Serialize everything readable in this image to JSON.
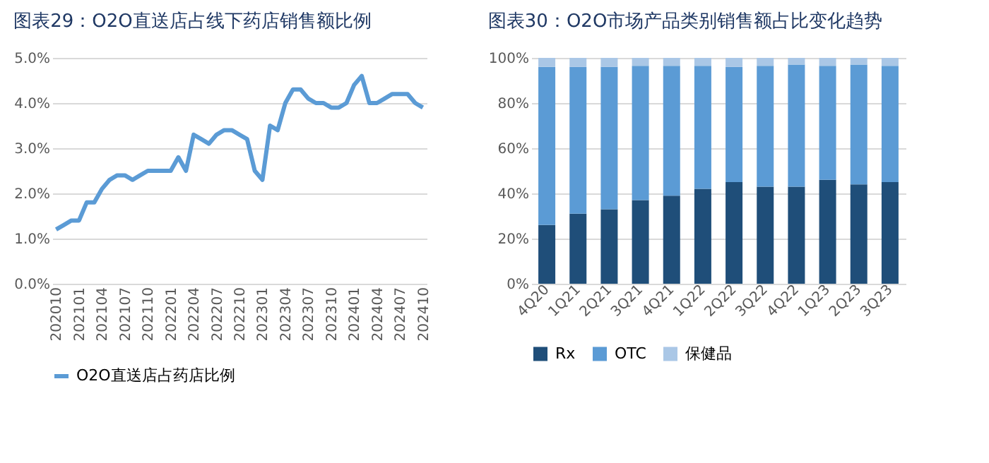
{
  "chart_data": [
    {
      "type": "line",
      "title": "图表29：O2O直送店占线下药店销售额比例",
      "categories": [
        "202010",
        null,
        null,
        "202101",
        null,
        null,
        "202104",
        null,
        null,
        "202107",
        null,
        null,
        "202110",
        null,
        null,
        "202201",
        null,
        null,
        "202204",
        null,
        null,
        "202207",
        null,
        null,
        "202210",
        null,
        null,
        "202301",
        null,
        null,
        "202304",
        null,
        null,
        "202307",
        null,
        null,
        "202310",
        null,
        null,
        "202401",
        null,
        null,
        "202404",
        null,
        null,
        "202407",
        null,
        null,
        "202410"
      ],
      "series": [
        {
          "name": "O2O直送店占药店比例",
          "color": "#5b9bd5",
          "values": [
            1.2,
            1.3,
            1.4,
            1.4,
            1.8,
            1.8,
            2.1,
            2.3,
            2.4,
            2.4,
            2.3,
            2.4,
            2.5,
            2.5,
            2.5,
            2.5,
            2.8,
            2.5,
            3.3,
            3.2,
            3.1,
            3.3,
            3.4,
            3.4,
            3.3,
            3.2,
            2.5,
            2.3,
            3.5,
            3.4,
            4.0,
            4.3,
            4.3,
            4.1,
            4.0,
            4.0,
            3.9,
            3.9,
            4.0,
            4.4,
            4.6,
            4.0,
            4.0,
            4.1,
            4.2,
            4.2,
            4.2,
            4.0,
            3.9
          ]
        }
      ],
      "ylim": [
        0,
        5
      ],
      "yticks": [
        {
          "value": 0,
          "label": "0.0%"
        },
        {
          "value": 1,
          "label": "1.0%"
        },
        {
          "value": 2,
          "label": "2.0%"
        },
        {
          "value": 3,
          "label": "3.0%"
        },
        {
          "value": 4,
          "label": "4.0%"
        },
        {
          "value": 5,
          "label": "5.0%"
        }
      ],
      "grid": "y",
      "legend": "bottom"
    },
    {
      "type": "bar",
      "title": "图表30：O2O市场产品类别销售额占比变化趋势",
      "stacked": true,
      "categories": [
        "4Q20",
        "1Q21",
        "2Q21",
        "3Q21",
        "4Q21",
        "1Q22",
        "2Q22",
        "3Q22",
        "4Q22",
        "1Q23",
        "2Q23",
        "3Q23"
      ],
      "series": [
        {
          "name": "Rx",
          "color": "#1f4e79",
          "values": [
            26,
            31,
            33,
            37,
            39,
            42,
            45,
            43,
            43,
            46,
            44,
            45
          ]
        },
        {
          "name": "OTC",
          "color": "#5b9bd5",
          "values": [
            70,
            65,
            63,
            59.5,
            57.5,
            54.5,
            51,
            53.5,
            54,
            50.5,
            53,
            51.5
          ]
        },
        {
          "name": "保健品",
          "color": "#aac7e6",
          "values": [
            4,
            4,
            4,
            3.5,
            3.5,
            3.5,
            4,
            3.5,
            3,
            3.5,
            3,
            3.5
          ]
        }
      ],
      "ylim": [
        0,
        100
      ],
      "yticks": [
        {
          "value": 0,
          "label": "0%"
        },
        {
          "value": 20,
          "label": "20%"
        },
        {
          "value": 40,
          "label": "40%"
        },
        {
          "value": 60,
          "label": "60%"
        },
        {
          "value": 80,
          "label": "80%"
        },
        {
          "value": 100,
          "label": "100%"
        }
      ],
      "grid": "y",
      "legend": "bottom"
    }
  ]
}
